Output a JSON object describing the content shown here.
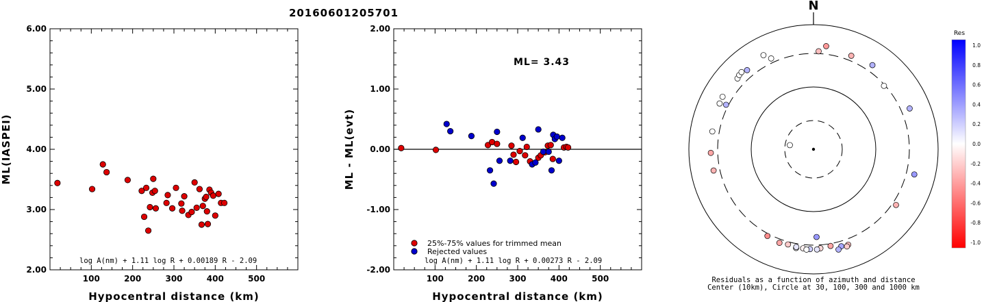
{
  "figure_title": "20160601205701",
  "chart_data": [
    {
      "type": "scatter",
      "ylabel": "ML(IASPEI)",
      "xlabel": "Hypocentral distance (km)",
      "xlim": [
        0,
        600
      ],
      "ylim": [
        2.0,
        6.0
      ],
      "xticks": [
        "100",
        "200",
        "300",
        "400",
        "500"
      ],
      "xtick_values": [
        100,
        200,
        300,
        400,
        500
      ],
      "yticks": [
        "2.00",
        "3.00",
        "4.00",
        "5.00",
        "6.00"
      ],
      "ytick_values": [
        2,
        3,
        4,
        5,
        6
      ],
      "formula": "log A(nm) + 1.11 log R + 0.00189 R - 2.09",
      "point_color": "#dd0000",
      "points": [
        [
          18,
          3.44
        ],
        [
          102,
          3.34
        ],
        [
          128,
          3.75
        ],
        [
          137,
          3.62
        ],
        [
          188,
          3.49
        ],
        [
          222,
          3.31
        ],
        [
          228,
          2.88
        ],
        [
          233,
          3.36
        ],
        [
          238,
          2.65
        ],
        [
          242,
          3.04
        ],
        [
          248,
          3.28
        ],
        [
          250,
          3.51
        ],
        [
          254,
          3.31
        ],
        [
          256,
          3.02
        ],
        [
          282,
          3.11
        ],
        [
          285,
          3.24
        ],
        [
          296,
          3.02
        ],
        [
          305,
          3.36
        ],
        [
          318,
          3.1
        ],
        [
          320,
          2.98
        ],
        [
          325,
          3.22
        ],
        [
          335,
          2.91
        ],
        [
          343,
          2.96
        ],
        [
          350,
          3.45
        ],
        [
          355,
          3.03
        ],
        [
          362,
          3.34
        ],
        [
          367,
          2.75
        ],
        [
          370,
          3.06
        ],
        [
          375,
          3.18
        ],
        [
          378,
          3.21
        ],
        [
          380,
          2.97
        ],
        [
          382,
          2.76
        ],
        [
          386,
          3.33
        ],
        [
          390,
          3.28
        ],
        [
          395,
          3.23
        ],
        [
          400,
          2.9
        ],
        [
          408,
          3.26
        ],
        [
          414,
          3.11
        ],
        [
          422,
          3.11
        ]
      ]
    },
    {
      "type": "scatter",
      "ylabel": "ML - ML(evt)",
      "xlabel": "Hypocentral distance (km)",
      "xlim": [
        0,
        600
      ],
      "ylim": [
        -2.0,
        2.0
      ],
      "xticks": [
        "100",
        "200",
        "300",
        "400",
        "500"
      ],
      "xtick_values": [
        100,
        200,
        300,
        400,
        500
      ],
      "yticks": [
        "-2.00",
        "-1.00",
        "0.00",
        "1.00",
        "2.00"
      ],
      "ytick_values": [
        -2,
        -1,
        0,
        1,
        2
      ],
      "annotation": "ML= 3.43",
      "formula": "log A(nm) + 1.11 log R + 0.00273 R - 2.09",
      "legend": [
        {
          "label": "25%-75% values for trimmed mean",
          "color": "#dd0000"
        },
        {
          "label": "Rejected values",
          "color": "#0000cc"
        }
      ],
      "series": [
        {
          "name": "25%-75% values for trimmed mean",
          "color": "#dd0000",
          "points": [
            [
              18,
              0.02
            ],
            [
              102,
              -0.01
            ],
            [
              228,
              0.07
            ],
            [
              238,
              0.12
            ],
            [
              250,
              0.09
            ],
            [
              285,
              0.06
            ],
            [
              290,
              -0.09
            ],
            [
              296,
              -0.21
            ],
            [
              305,
              -0.03
            ],
            [
              318,
              -0.1
            ],
            [
              322,
              0.04
            ],
            [
              330,
              -0.2
            ],
            [
              350,
              -0.14
            ],
            [
              356,
              -0.1
            ],
            [
              366,
              -0.05
            ],
            [
              373,
              0.06
            ],
            [
              380,
              0.07
            ],
            [
              385,
              -0.16
            ],
            [
              412,
              0.03
            ],
            [
              418,
              0.04
            ],
            [
              422,
              0.03
            ]
          ]
        },
        {
          "name": "Rejected values",
          "color": "#0000cc",
          "points": [
            [
              128,
              0.42
            ],
            [
              137,
              0.3
            ],
            [
              188,
              0.22
            ],
            [
              233,
              -0.35
            ],
            [
              242,
              -0.57
            ],
            [
              250,
              0.29
            ],
            [
              256,
              -0.19
            ],
            [
              282,
              -0.19
            ],
            [
              312,
              0.19
            ],
            [
              335,
              -0.25
            ],
            [
              343,
              -0.22
            ],
            [
              350,
              0.33
            ],
            [
              362,
              -0.04
            ],
            [
              375,
              -0.04
            ],
            [
              382,
              -0.35
            ],
            [
              386,
              0.24
            ],
            [
              390,
              0.17
            ],
            [
              395,
              0.21
            ],
            [
              400,
              -0.19
            ],
            [
              408,
              0.19
            ]
          ]
        }
      ]
    },
    {
      "type": "scatter",
      "subtype": "polar",
      "north_label": "N",
      "rings_km": [
        30,
        100,
        300,
        1000
      ],
      "caption_line1": "Residuals as a function of azimuth and distance",
      "caption_line2": "Center (10km), Circle at 30, 100, 300 and 1000 km",
      "points": [
        {
          "az": 7,
          "dist": 420,
          "res": -0.4
        },
        {
          "az": 3,
          "dist": 330,
          "res": -0.25
        },
        {
          "az": 22,
          "dist": 370,
          "res": -0.3
        },
        {
          "az": 35,
          "dist": 400,
          "res": 0.3
        },
        {
          "az": 48,
          "dist": 290,
          "res": 0.0
        },
        {
          "az": 67,
          "dist": 430,
          "res": 0.3
        },
        {
          "az": 104,
          "dist": 420,
          "res": 0.4
        },
        {
          "az": 124,
          "dist": 350,
          "res": -0.3
        },
        {
          "az": 178,
          "dist": 230,
          "res": 0.4
        },
        {
          "az": 170,
          "dist": 330,
          "res": -0.35
        },
        {
          "az": 176,
          "dist": 345,
          "res": -0.15
        },
        {
          "az": 164,
          "dist": 370,
          "res": 0.35
        },
        {
          "az": 160,
          "dist": 380,
          "res": -0.25
        },
        {
          "az": 161,
          "dist": 400,
          "res": -0.2
        },
        {
          "az": 166,
          "dist": 410,
          "res": 0.3
        },
        {
          "az": 178,
          "dist": 360,
          "res": 0.1
        },
        {
          "az": 182,
          "dist": 355,
          "res": 0.2
        },
        {
          "az": 186,
          "dist": 350,
          "res": -0.05
        },
        {
          "az": 184,
          "dist": 365,
          "res": 0.0
        },
        {
          "az": 190,
          "dist": 360,
          "res": 0.0
        },
        {
          "az": 190,
          "dist": 345,
          "res": 0.1
        },
        {
          "az": 195,
          "dist": 335,
          "res": -0.2
        },
        {
          "az": 200,
          "dist": 350,
          "res": -0.35
        },
        {
          "az": 208,
          "dist": 330,
          "res": -0.45
        },
        {
          "az": 258,
          "dist": 390,
          "res": -0.3
        },
        {
          "az": 268,
          "dist": 400,
          "res": -0.35
        },
        {
          "az": 280,
          "dist": 400,
          "res": 0.0
        },
        {
          "az": 296,
          "dist": 430,
          "res": 0.0
        },
        {
          "az": 300,
          "dist": 440,
          "res": 0.0
        },
        {
          "az": 297,
          "dist": 330,
          "res": 0.3
        },
        {
          "az": 313,
          "dist": 420,
          "res": 0.0
        },
        {
          "az": 315,
          "dist": 440,
          "res": 0.0
        },
        {
          "az": 317,
          "dist": 450,
          "res": 0.0
        },
        {
          "az": 320,
          "dist": 410,
          "res": 0.3
        },
        {
          "az": 332,
          "dist": 470,
          "res": 0.0
        },
        {
          "az": 335,
          "dist": 360,
          "res": 0.0
        },
        {
          "az": 280,
          "dist": 25,
          "res": 0.0
        }
      ]
    }
  ],
  "colorbar": {
    "title": "Res",
    "labels": [
      "1.0",
      "0.8",
      "0.6",
      "0.4",
      "0.2",
      "0.0",
      "-0.2",
      "-0.4",
      "-0.6",
      "-0.8",
      "-1.0"
    ],
    "max_color": "#0000ff",
    "zero_color": "#ffffff",
    "min_color": "#ff0000"
  }
}
